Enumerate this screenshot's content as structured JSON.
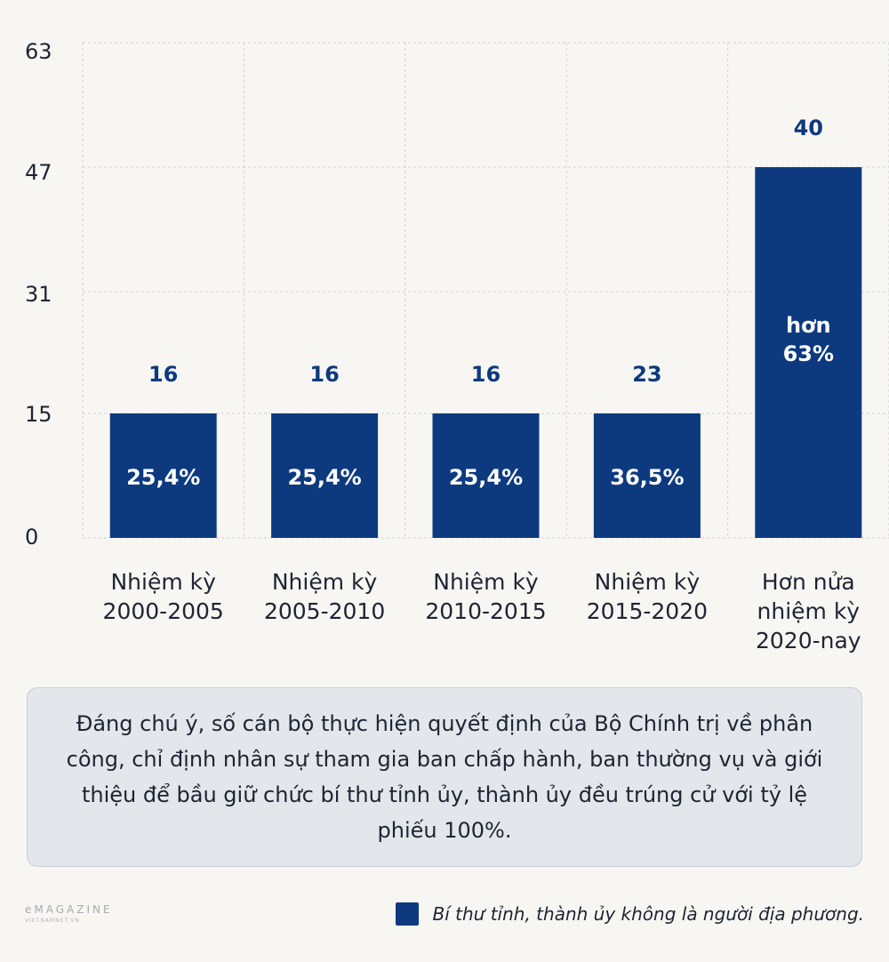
{
  "chart_data": {
    "type": "bar",
    "yticks": [
      "63",
      "47",
      "31",
      "15",
      "0"
    ],
    "ylim": [
      0,
      63
    ],
    "grid": true,
    "categories": [
      [
        "Nhiệm kỳ",
        "2000-2005"
      ],
      [
        "Nhiệm kỳ",
        "2005-2010"
      ],
      [
        "Nhiệm kỳ",
        "2010-2015"
      ],
      [
        "Nhiệm kỳ",
        "2015-2020"
      ],
      [
        "Hơn nửa",
        "nhiệm kỳ",
        "2020-nay"
      ]
    ],
    "values": [
      16,
      16,
      16,
      23,
      40
    ],
    "top_labels": [
      "16",
      "16",
      "16",
      "23",
      "40"
    ],
    "inner_labels": [
      [
        "25,4%"
      ],
      [
        "25,4%"
      ],
      [
        "25,4%"
      ],
      [
        "36,5%"
      ],
      [
        "hơn",
        "63%"
      ]
    ],
    "bar_color": "#0d3a7e",
    "legend": "Bí thư tỉnh, thành ủy không là người địa phương."
  },
  "note": {
    "text": "Đáng chú ý, số cán bộ thực hiện quyết định của Bộ Chính trị về phân công, chỉ định nhân sự tham gia ban chấp hành, ban thường vụ và giới thiệu để bầu giữ chức bí thư tỉnh ủy, thành ủy đều trúng cử với tỷ lệ phiếu 100%."
  },
  "brand": {
    "main": "eMAGAZINE",
    "sub": "VIETNAMNET.VN"
  }
}
